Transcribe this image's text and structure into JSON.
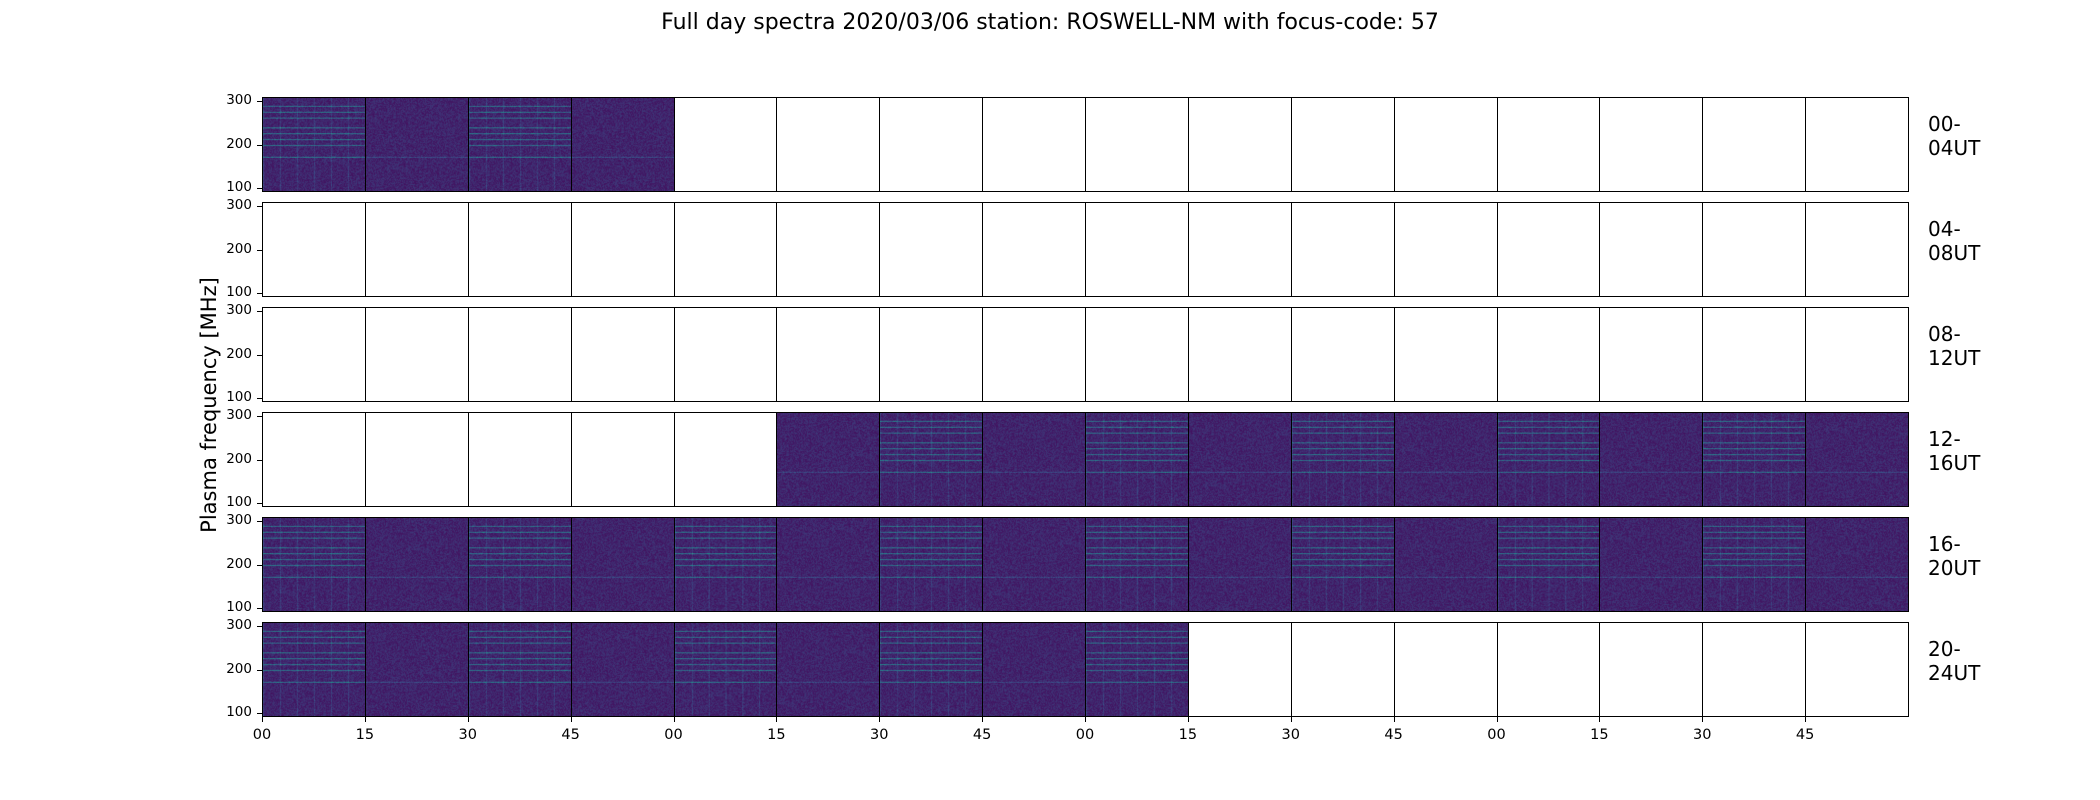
{
  "title": "Full day spectra 2020/03/06 station: ROSWELL-NM with focus-code: 57",
  "chart_data": {
    "type": "heatmap",
    "title": "Full day spectra 2020/03/06 station: ROSWELL-NM with focus-code: 57",
    "ylabel": "Plasma frequency [MHz]",
    "ylim": [
      90,
      310
    ],
    "yticks": [
      "300",
      "200",
      "100"
    ],
    "xticks": [
      "00",
      "15",
      "30",
      "45",
      "00",
      "15",
      "30",
      "45",
      "00",
      "15",
      "30",
      "45",
      "00",
      "15",
      "30",
      "45"
    ],
    "colormap": "viridis",
    "rows": [
      {
        "label": "00-04UT",
        "filled_columns": [
          0,
          1,
          2,
          3
        ]
      },
      {
        "label": "04-08UT",
        "filled_columns": []
      },
      {
        "label": "08-12UT",
        "filled_columns": []
      },
      {
        "label": "12-16UT",
        "filled_columns": [
          5,
          6,
          7,
          8,
          9,
          10,
          11,
          12,
          13,
          14,
          15
        ]
      },
      {
        "label": "16-20UT",
        "filled_columns": [
          0,
          1,
          2,
          3,
          4,
          5,
          6,
          7,
          8,
          9,
          10,
          11,
          12,
          13,
          14,
          15
        ]
      },
      {
        "label": "20-24UT",
        "filled_columns": [
          0,
          1,
          2,
          3,
          4,
          5,
          6,
          7,
          8
        ]
      }
    ],
    "columns_per_row": 16,
    "minutes_per_column": 15
  }
}
